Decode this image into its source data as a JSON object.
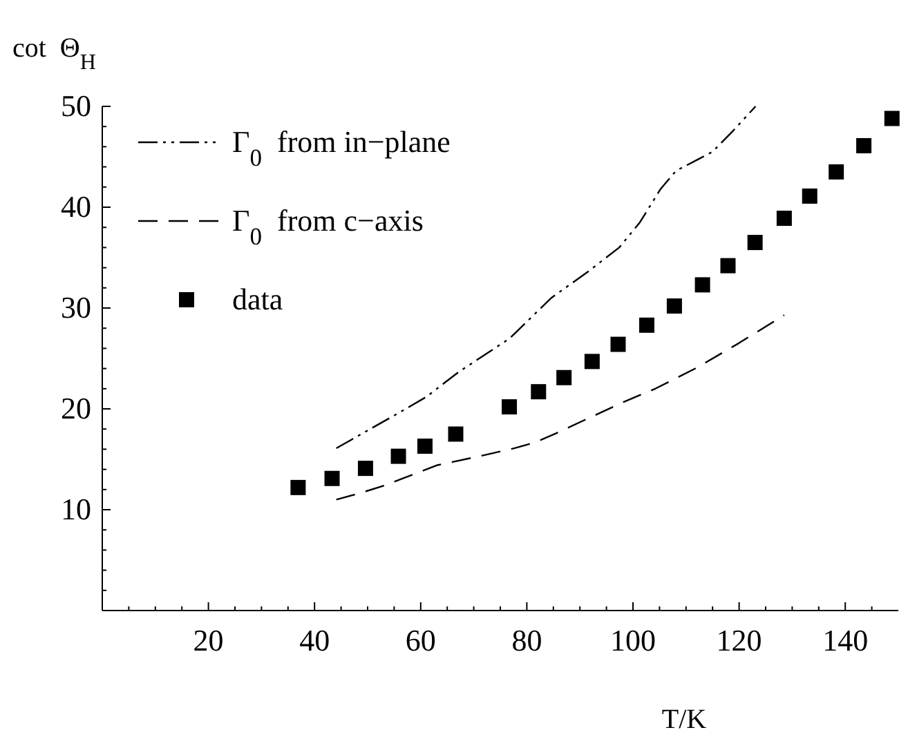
{
  "chart_data": {
    "type": "scatter",
    "xlabel": "T/K",
    "ylabel": "cot  Θ$_{H}$",
    "xlim": [
      0,
      150
    ],
    "ylim": [
      0,
      50
    ],
    "xticks": [
      {
        "value": 5,
        "label": null
      },
      {
        "value": 10,
        "label": null
      },
      {
        "value": 15,
        "label": null
      },
      20,
      {
        "value": 25,
        "label": null
      },
      {
        "value": 30,
        "label": null
      },
      {
        "value": 35,
        "label": null
      },
      40,
      {
        "value": 45,
        "label": null
      },
      {
        "value": 50,
        "label": null
      },
      {
        "value": 55,
        "label": null
      },
      60,
      {
        "value": 65,
        "label": null
      },
      {
        "value": 70,
        "label": null
      },
      {
        "value": 75,
        "label": null
      },
      80,
      {
        "value": 85,
        "label": null
      },
      {
        "value": 90,
        "label": null
      },
      {
        "value": 95,
        "label": null
      },
      100,
      {
        "value": 105,
        "label": null
      },
      {
        "value": 110,
        "label": null
      },
      {
        "value": 115,
        "label": null
      },
      120,
      {
        "value": 125,
        "label": null
      },
      {
        "value": 130,
        "label": null
      },
      {
        "value": 135,
        "label": null
      },
      140,
      {
        "value": 145,
        "label": null
      }
    ],
    "yticks": [
      {
        "value": 2,
        "label": null
      },
      {
        "value": 4,
        "label": null
      },
      {
        "value": 6,
        "label": null
      },
      {
        "value": 8,
        "label": null
      },
      10,
      {
        "value": 12,
        "label": null
      },
      {
        "value": 14,
        "label": null
      },
      {
        "value": 16,
        "label": null
      },
      {
        "value": 18,
        "label": null
      },
      20,
      {
        "value": 22,
        "label": null
      },
      {
        "value": 24,
        "label": null
      },
      {
        "value": 26,
        "label": null
      },
      {
        "value": 28,
        "label": null
      },
      30,
      {
        "value": 32,
        "label": null
      },
      {
        "value": 34,
        "label": null
      },
      {
        "value": 36,
        "label": null
      },
      {
        "value": 38,
        "label": null
      },
      40,
      {
        "value": 42,
        "label": null
      },
      {
        "value": 44,
        "label": null
      },
      {
        "value": 46,
        "label": null
      },
      {
        "value": 48,
        "label": null
      },
      50
    ],
    "legend": "top left",
    "grid": false,
    "series": [
      {
        "name": "Γ$_{0}$  from in−plane",
        "type": "line",
        "color": "#000000",
        "line_style": "dashdot",
        "x": [
          44.1,
          55.2,
          61.1,
          67,
          76.8,
          84.6,
          91.5,
          97.4,
          101.3,
          105.2,
          108.1,
          112.1,
          115,
          118.9,
          123.1
        ],
        "values": [
          16.1,
          19.4,
          21.2,
          23.6,
          27.0,
          31.0,
          33.6,
          36.0,
          38.5,
          41.8,
          43.6,
          44.7,
          45.5,
          47.6,
          50.0
        ]
      },
      {
        "name": "Γ$_{0}$  from c−axis",
        "type": "line",
        "color": "#000000",
        "line_style": "dashed",
        "x": [
          44.1,
          48.3,
          53.2,
          63,
          71.9,
          77.7,
          81.7,
          85.6,
          90.5,
          98.3,
          104.2,
          112.1,
          119.9,
          128.5
        ],
        "values": [
          11.0,
          11.6,
          12.4,
          14.4,
          15.4,
          16.1,
          16.7,
          17.6,
          18.8,
          20.7,
          22.0,
          24.1,
          26.5,
          29.3
        ]
      },
      {
        "name": "data",
        "color": "#000000",
        "marker": "square",
        "x": [
          36.9,
          43.3,
          49.6,
          55.8,
          60.8,
          66.6,
          76.7,
          82.2,
          87.0,
          92.3,
          97.2,
          102.6,
          107.8,
          113.1,
          117.9,
          123.0,
          128.5,
          133.3,
          138.3,
          143.5,
          148.8
        ],
        "values": [
          12.2,
          13.1,
          14.1,
          15.3,
          16.3,
          17.5,
          20.2,
          21.7,
          23.1,
          24.7,
          26.4,
          28.3,
          30.2,
          32.3,
          34.2,
          36.5,
          38.9,
          41.1,
          43.5,
          46.1,
          48.8
        ]
      }
    ]
  }
}
